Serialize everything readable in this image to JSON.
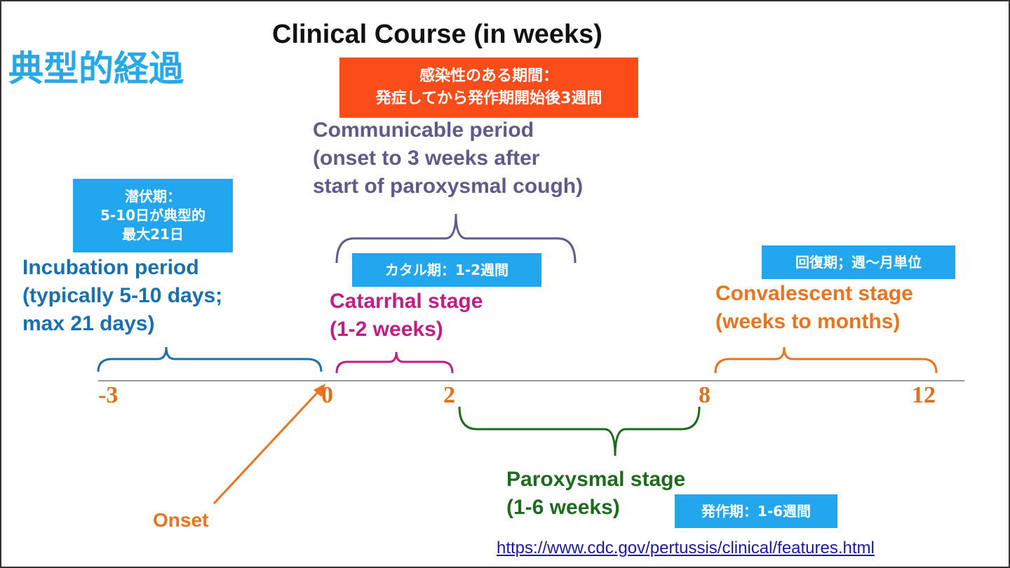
{
  "slide_title": "典型的経過",
  "diagram_title": "Clinical Course (in weeks)",
  "callouts": {
    "communicable_jp": [
      "感染性のある期間：",
      "発症してから発作期開始後3週間"
    ],
    "incubation_jp": [
      "潜伏期：",
      "5-10日が典型的",
      "最大21日"
    ],
    "catarrhal_jp": "カタル期：1-2週間",
    "convalescent_jp": "回復期；週〜月単位",
    "paroxysmal_jp": "発作期：1-6週間"
  },
  "stages": {
    "communicable": [
      "Communicable period",
      "(onset to 3 weeks after",
      "start of paroxysmal cough)"
    ],
    "incubation": [
      "Incubation period",
      "(typically 5-10 days;",
      "max 21 days)"
    ],
    "catarrhal": [
      "Catarrhal stage",
      "(1-2 weeks)"
    ],
    "paroxysmal": [
      "Paroxysmal stage",
      "(1-6 weeks)"
    ],
    "convalescent": [
      "Convalescent stage",
      "(weeks to months)"
    ]
  },
  "axis_ticks": [
    "-3",
    "0",
    "2",
    "8",
    "12"
  ],
  "onset_label": "Onset",
  "source_url": "https://www.cdc.gov/pertussis/clinical/features.html",
  "colors": {
    "title_blue": "#29a8e8",
    "callout_blue": "#22a7ee",
    "callout_orange": "#fc4c1a",
    "communicable": "#5e5a8a",
    "incubation": "#1a6fae",
    "catarrhal": "#c41c86",
    "paroxysmal": "#1e6b1e",
    "convalescent": "#e8741f",
    "axis_ticks": "#e0701c"
  }
}
